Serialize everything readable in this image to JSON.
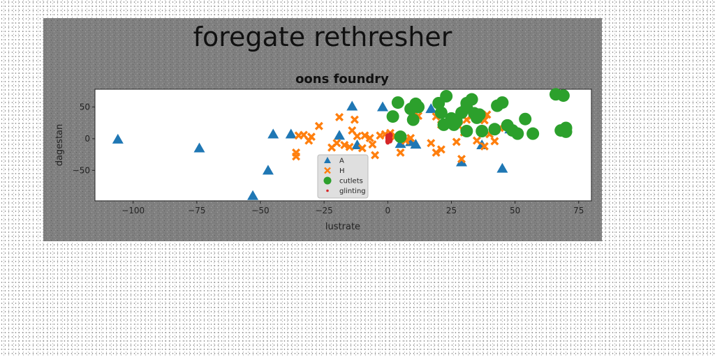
{
  "chart_data": {
    "type": "scatter",
    "suptitle": "foregate rethresher",
    "title": "oons foundry",
    "xlabel": "lustrate",
    "ylabel": "dagestan",
    "xlim": [
      -115,
      80
    ],
    "ylim": [
      -98,
      78
    ],
    "xticks": [
      -100,
      -75,
      -50,
      -25,
      0,
      25,
      50,
      75
    ],
    "yticks": [
      -50,
      0,
      50
    ],
    "grid": false,
    "legend_position": "lower-center",
    "series": [
      {
        "name": "A",
        "marker": "triangle",
        "color": "#1f77b4",
        "points": [
          [
            -106,
            -1
          ],
          [
            -74,
            -15
          ],
          [
            -53,
            -90
          ],
          [
            -47,
            -50
          ],
          [
            -45,
            7
          ],
          [
            -38,
            7
          ],
          [
            -19,
            5
          ],
          [
            -14,
            51
          ],
          [
            -12,
            -10
          ],
          [
            -2,
            50
          ],
          [
            5,
            -8
          ],
          [
            9,
            -5
          ],
          [
            11,
            -9
          ],
          [
            17,
            47
          ],
          [
            29,
            -37
          ],
          [
            37,
            -10
          ],
          [
            45,
            -47
          ],
          [
            48,
            15
          ]
        ]
      },
      {
        "name": "H",
        "marker": "x",
        "color": "#ff7f0e",
        "points": [
          [
            -36,
            -28
          ],
          [
            -36,
            -22
          ],
          [
            -35,
            5
          ],
          [
            -33,
            6
          ],
          [
            -31,
            -3
          ],
          [
            -30,
            3
          ],
          [
            -27,
            20
          ],
          [
            -22,
            -14
          ],
          [
            -20,
            -7
          ],
          [
            -19,
            34
          ],
          [
            -17,
            -10
          ],
          [
            -15,
            -13
          ],
          [
            -14,
            13
          ],
          [
            -13,
            30
          ],
          [
            -12,
            4
          ],
          [
            -10,
            -15
          ],
          [
            -9,
            5
          ],
          [
            -7,
            1
          ],
          [
            -6,
            -9
          ],
          [
            -5,
            -26
          ],
          [
            -3,
            5
          ],
          [
            -1,
            7
          ],
          [
            1,
            9
          ],
          [
            3,
            4
          ],
          [
            5,
            -22
          ],
          [
            7,
            -3
          ],
          [
            9,
            1
          ],
          [
            12,
            36
          ],
          [
            17,
            -7
          ],
          [
            19,
            -22
          ],
          [
            19,
            35
          ],
          [
            21,
            22
          ],
          [
            21,
            -17
          ],
          [
            25,
            32
          ],
          [
            27,
            -5
          ],
          [
            28,
            20
          ],
          [
            29,
            -32
          ],
          [
            30,
            10
          ],
          [
            31,
            30
          ],
          [
            33,
            36
          ],
          [
            35,
            -3
          ],
          [
            38,
            29
          ],
          [
            39,
            38
          ],
          [
            40,
            7
          ],
          [
            42,
            -4
          ],
          [
            44,
            17
          ],
          [
            38,
            -12
          ]
        ]
      },
      {
        "name": "cutlets",
        "marker": "circle",
        "color": "#2ca02c",
        "points": [
          [
            2,
            35
          ],
          [
            4,
            57
          ],
          [
            5,
            3
          ],
          [
            9,
            47
          ],
          [
            10,
            30
          ],
          [
            11,
            55
          ],
          [
            12,
            50
          ],
          [
            20,
            56
          ],
          [
            21,
            41
          ],
          [
            22,
            22
          ],
          [
            23,
            67
          ],
          [
            25,
            32
          ],
          [
            26,
            22
          ],
          [
            27,
            27
          ],
          [
            29,
            41
          ],
          [
            31,
            49
          ],
          [
            31,
            56
          ],
          [
            31,
            12
          ],
          [
            33,
            62
          ],
          [
            34,
            40
          ],
          [
            35,
            33
          ],
          [
            36,
            38
          ],
          [
            37,
            12
          ],
          [
            42,
            15
          ],
          [
            43,
            52
          ],
          [
            45,
            57
          ],
          [
            47,
            21
          ],
          [
            49,
            13
          ],
          [
            51,
            8
          ],
          [
            54,
            31
          ],
          [
            57,
            8
          ],
          [
            66,
            70
          ],
          [
            68,
            13
          ],
          [
            69,
            68
          ],
          [
            70,
            17
          ],
          [
            70,
            11
          ]
        ]
      },
      {
        "name": "glinting",
        "marker": "dot",
        "color": "#d62728",
        "points": [
          [
            0,
            3
          ],
          [
            0,
            1
          ],
          [
            1,
            -2
          ],
          [
            0,
            -4
          ],
          [
            1,
            5
          ]
        ]
      }
    ],
    "colors": {
      "figure_bg": "#808080",
      "axes_bg": "#ffffff",
      "legend_bg": "#dcdcdc"
    }
  }
}
